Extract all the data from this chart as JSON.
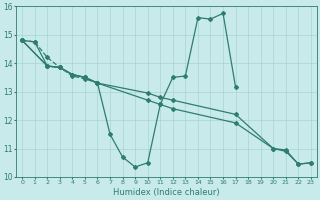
{
  "xlabel": "Humidex (Indice chaleur)",
  "background_color": "#c8eaea",
  "grid_color": "#a8d4d4",
  "line_color": "#2e7d6e",
  "xlim": [
    -0.5,
    23.5
  ],
  "ylim": [
    10,
    16
  ],
  "yticks": [
    10,
    11,
    12,
    13,
    14,
    15,
    16
  ],
  "xticks": [
    0,
    1,
    2,
    3,
    4,
    5,
    6,
    7,
    8,
    9,
    10,
    11,
    12,
    13,
    14,
    15,
    16,
    17,
    18,
    19,
    20,
    21,
    22,
    23
  ],
  "line1_x": [
    0,
    1,
    2,
    3,
    4,
    5,
    6,
    7,
    8,
    9,
    10,
    11,
    12,
    13,
    14,
    15,
    16,
    17
  ],
  "line1_y": [
    14.8,
    14.75,
    13.9,
    13.85,
    13.6,
    13.5,
    13.3,
    11.5,
    10.7,
    10.35,
    10.5,
    12.55,
    13.5,
    13.55,
    15.6,
    15.55,
    15.75,
    13.15
  ],
  "line2_x": [
    0,
    1,
    2,
    3,
    4,
    5,
    6
  ],
  "line2_y": [
    14.8,
    14.75,
    14.2,
    13.85,
    13.55,
    13.45,
    13.3
  ],
  "line3_x": [
    0,
    2,
    3,
    4,
    5,
    6,
    10,
    11,
    12,
    17,
    20,
    21,
    22,
    23
  ],
  "line3_y": [
    14.8,
    13.9,
    13.85,
    13.6,
    13.5,
    13.3,
    12.95,
    12.8,
    12.7,
    12.2,
    11.0,
    10.95,
    10.45,
    10.5
  ],
  "line4_x": [
    0,
    2,
    3,
    4,
    5,
    6,
    10,
    11,
    12,
    17,
    20,
    21,
    22,
    23
  ],
  "line4_y": [
    14.8,
    13.9,
    13.85,
    13.6,
    13.5,
    13.3,
    12.7,
    12.55,
    12.4,
    11.9,
    11.0,
    10.9,
    10.45,
    10.5
  ]
}
